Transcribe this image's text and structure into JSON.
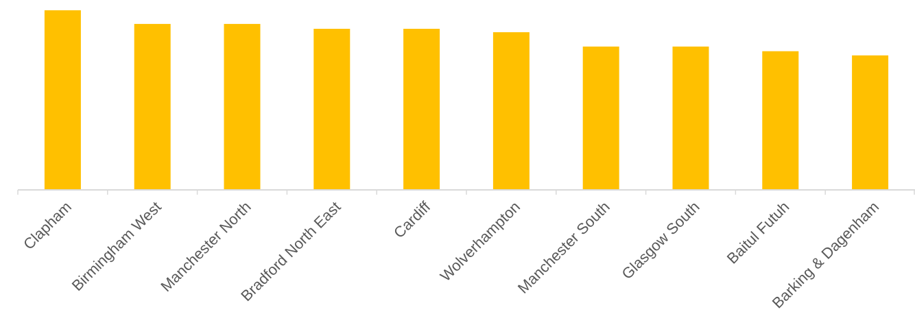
{
  "chart_data": {
    "type": "bar",
    "categories": [
      "Clapham",
      "Birmingham West",
      "Manchester North",
      "Bradford North East",
      "Cardiff",
      "Wolverhampton",
      "Manchester South",
      "Glasgow South",
      "Baitul Futuh",
      "Barking & Dagenham"
    ],
    "values": [
      100,
      92.4,
      92.4,
      89.7,
      89.7,
      87.8,
      79.8,
      79.8,
      77.2,
      74.9
    ],
    "title": "",
    "xlabel": "",
    "ylabel": "",
    "ylim": [
      0,
      100
    ],
    "grid": false,
    "legend": "none",
    "colors": {
      "bar": "#FFC000",
      "axis": "#D9D9D9",
      "label": "#595959"
    }
  }
}
